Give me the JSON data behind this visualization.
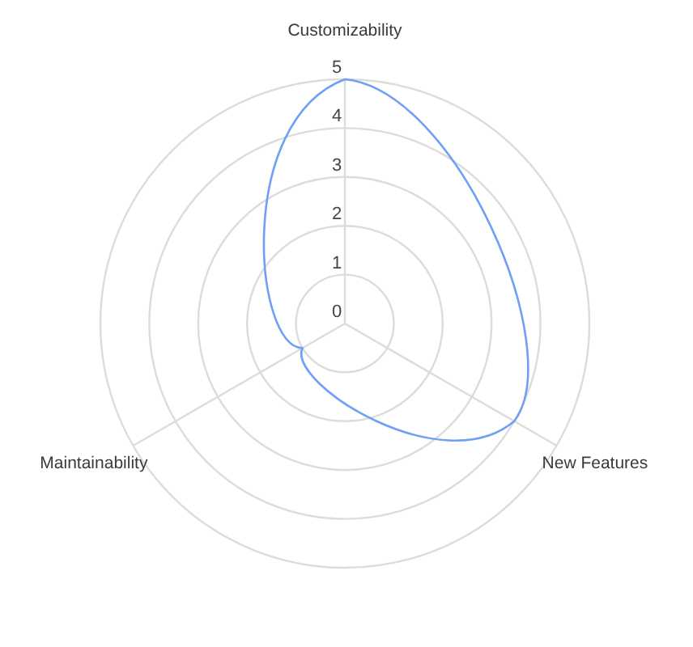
{
  "chart_data": {
    "type": "radar",
    "categories": [
      "Customizability",
      "New Features",
      "Maintainability"
    ],
    "series": [
      {
        "color": "#6fa0f6",
        "values": [
          5,
          4,
          1
        ]
      }
    ],
    "ylim": [
      0,
      5
    ],
    "yticks": [
      0,
      1,
      2,
      3,
      4,
      5
    ],
    "grid": true
  }
}
